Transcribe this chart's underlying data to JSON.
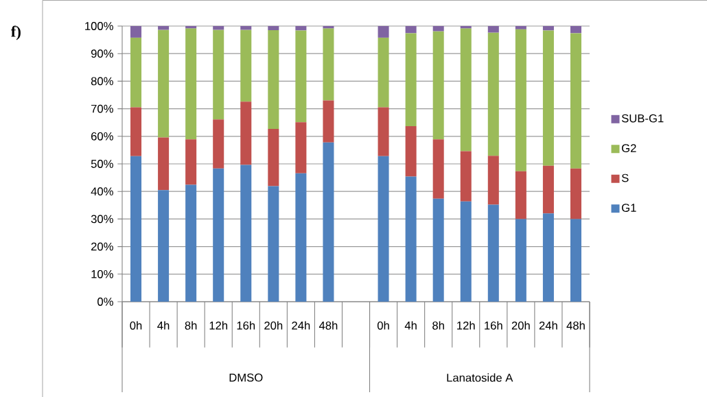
{
  "chart_data": {
    "type": "bar",
    "stacked": true,
    "categories": [
      "0h",
      "4h",
      "8h",
      "12h",
      "16h",
      "20h",
      "24h",
      "48h",
      null,
      "0h",
      "4h",
      "8h",
      "12h",
      "16h",
      "20h",
      "24h",
      "48h"
    ],
    "series": [
      {
        "name": "G1",
        "color": "#4f81bd",
        "values": [
          52.8,
          40.5,
          42.4,
          48.3,
          49.6,
          41.9,
          46.6,
          57.8,
          null,
          52.8,
          45.4,
          37.4,
          36.4,
          35.2,
          30.0,
          32.0,
          30.0
        ]
      },
      {
        "name": "S",
        "color": "#c0504d",
        "values": [
          17.7,
          19.1,
          16.5,
          17.8,
          23.0,
          20.8,
          18.5,
          15.2,
          null,
          17.7,
          18.3,
          21.5,
          18.2,
          17.7,
          17.3,
          17.3,
          18.3
        ]
      },
      {
        "name": "G2",
        "color": "#9bbb59",
        "values": [
          25.3,
          39.0,
          40.2,
          32.5,
          26.0,
          35.8,
          33.3,
          26.1,
          null,
          25.3,
          33.7,
          39.2,
          44.5,
          44.7,
          51.5,
          49.1,
          49.1
        ]
      },
      {
        "name": "SUB-G1",
        "color": "#8064a2",
        "values": [
          4.2,
          1.4,
          0.9,
          1.4,
          1.4,
          1.5,
          1.6,
          0.9,
          null,
          4.2,
          2.6,
          1.9,
          0.9,
          2.4,
          1.2,
          1.6,
          2.6
        ]
      }
    ],
    "ylim": [
      0,
      100
    ],
    "yticks": [
      {
        "value": 0,
        "label": "0%"
      },
      {
        "value": 10,
        "label": "10%"
      },
      {
        "value": 20,
        "label": "20%"
      },
      {
        "value": 30,
        "label": "30%"
      },
      {
        "value": 40,
        "label": "40%"
      },
      {
        "value": 50,
        "label": "50%"
      },
      {
        "value": 60,
        "label": "60%"
      },
      {
        "value": 70,
        "label": "70%"
      },
      {
        "value": 80,
        "label": "80%"
      },
      {
        "value": 90,
        "label": "90%"
      },
      {
        "value": 100,
        "label": "100%"
      }
    ],
    "grid": "y",
    "legend": "right",
    "annotations": [
      "f)",
      "DMSO",
      "Lanatoside A"
    ]
  }
}
